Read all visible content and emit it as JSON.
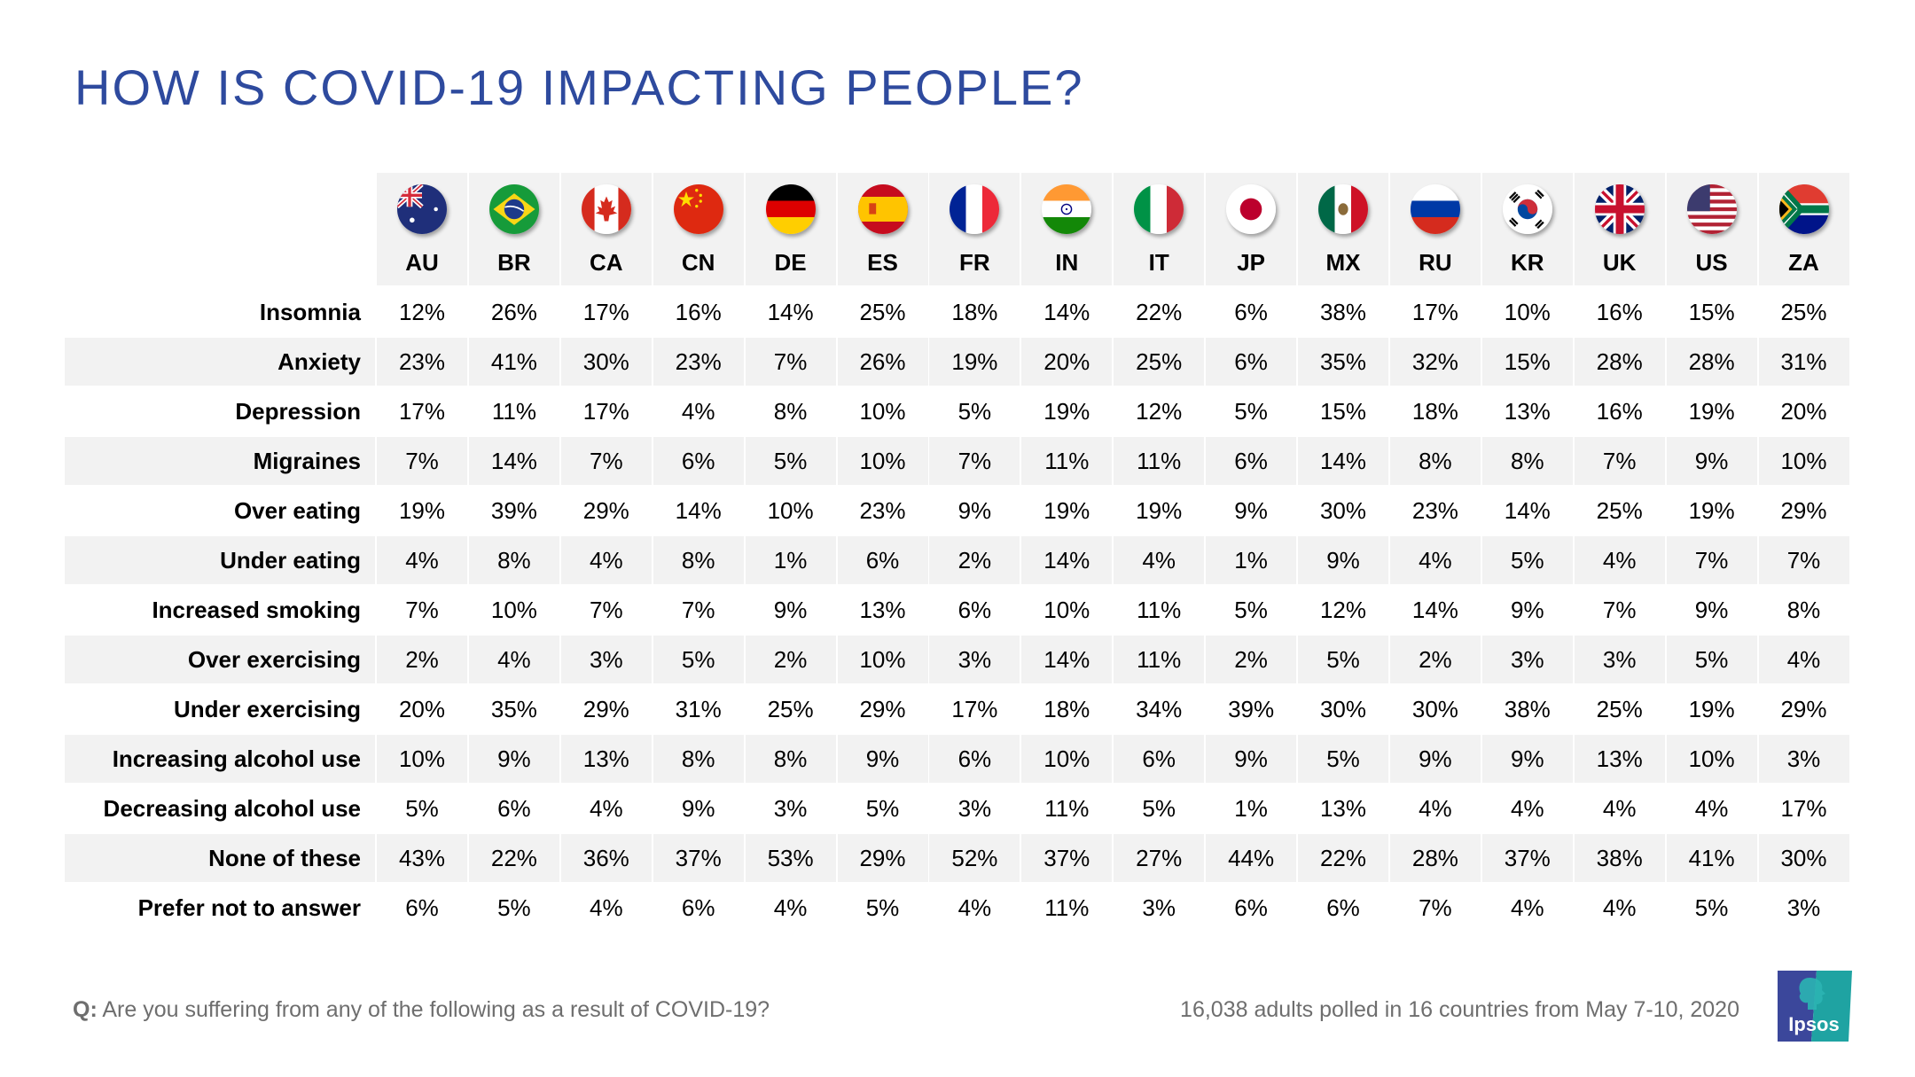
{
  "title": "HOW IS COVID-19 IMPACTING PEOPLE?",
  "footer": {
    "question_prefix": "Q:",
    "question": "Are you suffering from any of the following as a result of COVID-19?",
    "sample_note": "16,038 adults polled in 16 countries from May 7-10, 2020",
    "logo_text": "Ipsos"
  },
  "colors": {
    "title": "#2E4A9E",
    "shade": "#F2F2F2",
    "logo_left": "#3B479B",
    "logo_right": "#1FA3A2"
  },
  "countries": [
    {
      "code": "AU",
      "flag": "australia-flag-icon"
    },
    {
      "code": "BR",
      "flag": "brazil-flag-icon"
    },
    {
      "code": "CA",
      "flag": "canada-flag-icon"
    },
    {
      "code": "CN",
      "flag": "china-flag-icon"
    },
    {
      "code": "DE",
      "flag": "germany-flag-icon"
    },
    {
      "code": "ES",
      "flag": "spain-flag-icon"
    },
    {
      "code": "FR",
      "flag": "france-flag-icon"
    },
    {
      "code": "IN",
      "flag": "india-flag-icon"
    },
    {
      "code": "IT",
      "flag": "italy-flag-icon"
    },
    {
      "code": "JP",
      "flag": "japan-flag-icon"
    },
    {
      "code": "MX",
      "flag": "mexico-flag-icon"
    },
    {
      "code": "RU",
      "flag": "russia-flag-icon"
    },
    {
      "code": "KR",
      "flag": "south-korea-flag-icon"
    },
    {
      "code": "UK",
      "flag": "united-kingdom-flag-icon"
    },
    {
      "code": "US",
      "flag": "united-states-flag-icon"
    },
    {
      "code": "ZA",
      "flag": "south-africa-flag-icon"
    }
  ],
  "chart_data": {
    "type": "table",
    "title": "HOW IS COVID-19 IMPACTING PEOPLE?",
    "columns": [
      "AU",
      "BR",
      "CA",
      "CN",
      "DE",
      "ES",
      "FR",
      "IN",
      "IT",
      "JP",
      "MX",
      "RU",
      "KR",
      "UK",
      "US",
      "ZA"
    ],
    "unit": "%",
    "rows": [
      {
        "label": "Insomnia",
        "values": [
          12,
          26,
          17,
          16,
          14,
          25,
          18,
          14,
          22,
          6,
          38,
          17,
          10,
          16,
          15,
          25
        ]
      },
      {
        "label": "Anxiety",
        "values": [
          23,
          41,
          30,
          23,
          7,
          26,
          19,
          20,
          25,
          6,
          35,
          32,
          15,
          28,
          28,
          31
        ]
      },
      {
        "label": "Depression",
        "values": [
          17,
          11,
          17,
          4,
          8,
          10,
          5,
          19,
          12,
          5,
          15,
          18,
          13,
          16,
          19,
          20
        ]
      },
      {
        "label": "Migraines",
        "values": [
          7,
          14,
          7,
          6,
          5,
          10,
          7,
          11,
          11,
          6,
          14,
          8,
          8,
          7,
          9,
          10
        ]
      },
      {
        "label": "Over eating",
        "values": [
          19,
          39,
          29,
          14,
          10,
          23,
          9,
          19,
          19,
          9,
          30,
          23,
          14,
          25,
          19,
          29
        ]
      },
      {
        "label": "Under eating",
        "values": [
          4,
          8,
          4,
          8,
          1,
          6,
          2,
          14,
          4,
          1,
          9,
          4,
          5,
          4,
          7,
          7
        ]
      },
      {
        "label": "Increased smoking",
        "values": [
          7,
          10,
          7,
          7,
          9,
          13,
          6,
          10,
          11,
          5,
          12,
          14,
          9,
          7,
          9,
          8
        ]
      },
      {
        "label": "Over exercising",
        "values": [
          2,
          4,
          3,
          5,
          2,
          10,
          3,
          14,
          11,
          2,
          5,
          2,
          3,
          3,
          5,
          4
        ]
      },
      {
        "label": "Under exercising",
        "values": [
          20,
          35,
          29,
          31,
          25,
          29,
          17,
          18,
          34,
          39,
          30,
          30,
          38,
          25,
          19,
          29
        ]
      },
      {
        "label": "Increasing alcohol use",
        "values": [
          10,
          9,
          13,
          8,
          8,
          9,
          6,
          10,
          6,
          9,
          5,
          9,
          9,
          13,
          10,
          3
        ]
      },
      {
        "label": "Decreasing alcohol use",
        "values": [
          5,
          6,
          4,
          9,
          3,
          5,
          3,
          11,
          5,
          1,
          13,
          4,
          4,
          4,
          4,
          17
        ]
      },
      {
        "label": "None of these",
        "values": [
          43,
          22,
          36,
          37,
          53,
          29,
          52,
          37,
          27,
          44,
          22,
          28,
          37,
          38,
          41,
          30
        ]
      },
      {
        "label": "Prefer not to answer",
        "values": [
          6,
          5,
          4,
          6,
          4,
          5,
          4,
          11,
          3,
          6,
          6,
          7,
          4,
          4,
          5,
          3
        ]
      }
    ]
  }
}
